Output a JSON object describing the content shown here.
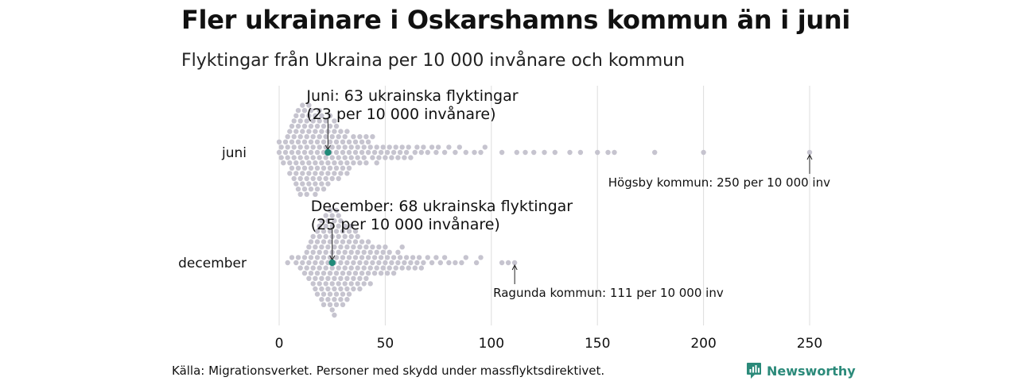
{
  "header": {
    "title": "Fler ukrainare i Oskarshamns kommun än i juni",
    "subtitle": "Flyktingar från Ukraina per 10 000 invånare och kommun"
  },
  "footer": {
    "source": "Källa: Migrationsverket. Personer med skydd under massflyktsdirektivet.",
    "brand": "Newsworthy"
  },
  "colors": {
    "dot": "#c6c4cf",
    "highlight": "#1f8a78",
    "grid": "#dddddd",
    "text": "#111111",
    "brand": "#2b8a7a"
  },
  "chart_data": {
    "type": "scatter",
    "subtype": "beeswarm",
    "x_axis": {
      "ticks": [
        0,
        50,
        100,
        150,
        200,
        250
      ],
      "range": [
        0,
        250
      ],
      "grid": true
    },
    "rows": [
      {
        "label": "juni",
        "highlight": {
          "value": 23,
          "label_lines": [
            "Juni: 63 ukrainska flyktingar",
            "(23 per 10 000 invånare)"
          ]
        },
        "max_annotation": {
          "value": 250,
          "text": "Högsby kommun: 250 per 10 000 inv"
        },
        "values": [
          0,
          0,
          1,
          1,
          2,
          3,
          3,
          4,
          4,
          4,
          5,
          5,
          5,
          6,
          6,
          6,
          6,
          7,
          7,
          7,
          7,
          7,
          8,
          8,
          8,
          8,
          8,
          9,
          9,
          9,
          9,
          9,
          9,
          10,
          10,
          10,
          10,
          10,
          10,
          11,
          11,
          11,
          11,
          11,
          11,
          12,
          12,
          12,
          12,
          12,
          12,
          13,
          13,
          13,
          13,
          13,
          13,
          14,
          14,
          14,
          14,
          14,
          14,
          15,
          15,
          15,
          15,
          15,
          15,
          16,
          16,
          16,
          16,
          16,
          17,
          17,
          17,
          17,
          17,
          17,
          18,
          18,
          18,
          18,
          18,
          19,
          19,
          19,
          19,
          19,
          19,
          20,
          20,
          20,
          20,
          20,
          21,
          21,
          21,
          21,
          21,
          22,
          22,
          22,
          22,
          22,
          23,
          23,
          23,
          23,
          24,
          24,
          24,
          24,
          24,
          25,
          25,
          25,
          25,
          26,
          26,
          26,
          26,
          27,
          27,
          27,
          27,
          28,
          28,
          28,
          28,
          29,
          29,
          29,
          30,
          30,
          30,
          31,
          31,
          31,
          32,
          32,
          32,
          33,
          33,
          33,
          34,
          34,
          35,
          35,
          36,
          36,
          37,
          37,
          38,
          38,
          39,
          39,
          40,
          40,
          41,
          41,
          42,
          42,
          43,
          44,
          44,
          45,
          46,
          46,
          47,
          48,
          49,
          50,
          51,
          52,
          53,
          54,
          55,
          56,
          57,
          58,
          59,
          60,
          61,
          62,
          64,
          65,
          67,
          68,
          70,
          72,
          74,
          75,
          78,
          80,
          83,
          85,
          88,
          92,
          95,
          97,
          105,
          112,
          116,
          120,
          125,
          130,
          137,
          142,
          150,
          155,
          158,
          177,
          200,
          250
        ]
      },
      {
        "label": "december",
        "highlight": {
          "value": 25,
          "label_lines": [
            "December: 68 ukrainska flyktingar",
            "(25 per 10 000 invånare)"
          ]
        },
        "max_annotation": {
          "value": 111,
          "text": "Ragunda kommun: 111 per 10 000 inv"
        },
        "values": [
          4,
          6,
          8,
          9,
          10,
          11,
          12,
          12,
          13,
          13,
          14,
          14,
          14,
          15,
          15,
          15,
          16,
          16,
          16,
          16,
          17,
          17,
          17,
          17,
          18,
          18,
          18,
          18,
          18,
          19,
          19,
          19,
          19,
          19,
          20,
          20,
          20,
          20,
          20,
          20,
          21,
          21,
          21,
          21,
          21,
          21,
          22,
          22,
          22,
          22,
          22,
          22,
          23,
          23,
          23,
          23,
          23,
          23,
          24,
          24,
          24,
          24,
          24,
          24,
          24,
          25,
          25,
          25,
          25,
          25,
          25,
          25,
          26,
          26,
          26,
          26,
          26,
          26,
          26,
          27,
          27,
          27,
          27,
          27,
          27,
          27,
          28,
          28,
          28,
          28,
          28,
          28,
          29,
          29,
          29,
          29,
          29,
          29,
          30,
          30,
          30,
          30,
          30,
          30,
          31,
          31,
          31,
          31,
          31,
          32,
          32,
          32,
          32,
          32,
          33,
          33,
          33,
          33,
          33,
          34,
          34,
          34,
          34,
          34,
          35,
          35,
          35,
          35,
          36,
          36,
          36,
          36,
          37,
          37,
          37,
          37,
          38,
          38,
          38,
          38,
          39,
          39,
          39,
          40,
          40,
          40,
          41,
          41,
          41,
          42,
          42,
          42,
          43,
          43,
          43,
          44,
          44,
          45,
          45,
          46,
          46,
          47,
          47,
          48,
          48,
          49,
          49,
          50,
          50,
          51,
          51,
          52,
          52,
          53,
          54,
          54,
          55,
          56,
          56,
          57,
          58,
          58,
          59,
          60,
          61,
          62,
          63,
          64,
          65,
          66,
          67,
          68,
          70,
          72,
          74,
          76,
          78,
          80,
          83,
          86,
          88,
          93,
          95,
          105,
          108,
          111
        ]
      }
    ]
  }
}
